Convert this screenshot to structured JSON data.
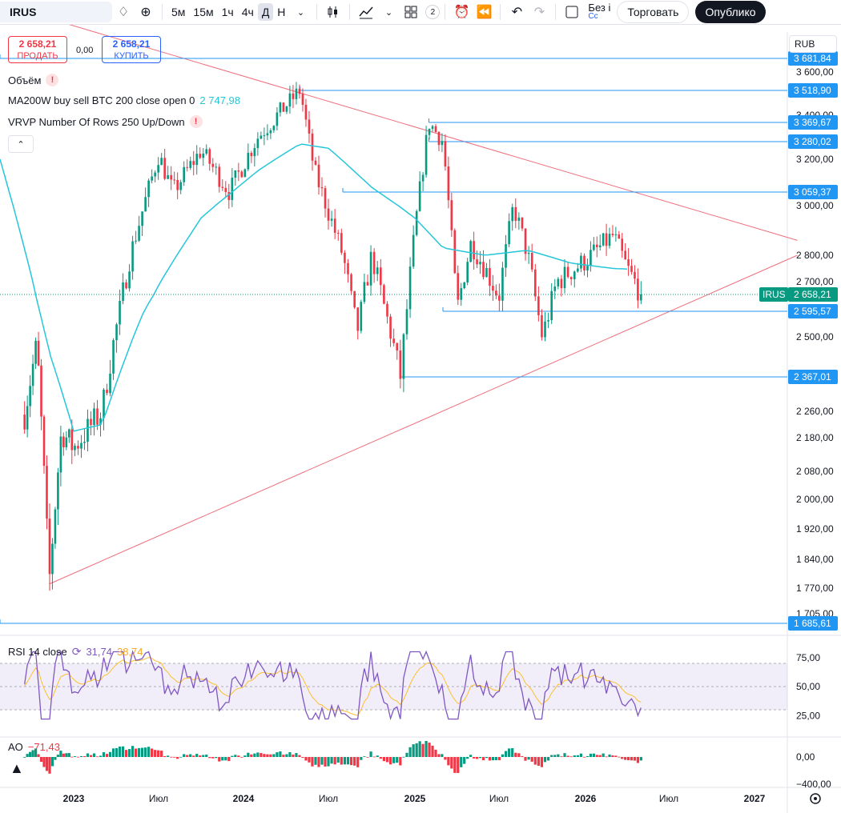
{
  "toolbar": {
    "symbol": "IRUS",
    "timeframes": [
      "5м",
      "15м",
      "1ч",
      "4ч",
      "Д",
      "Н"
    ],
    "active_timeframe": "Д",
    "layout_count": "2",
    "no_reg_top": "Без і",
    "no_reg_bottom": "Сс",
    "trade_label": "Торговать",
    "publish_label": "Опублико"
  },
  "order": {
    "sell_price": "2 658,21",
    "sell_label": "ПРОДАТЬ",
    "spread": "0,00",
    "buy_price": "2 658,21",
    "buy_label": "КУПИТЬ"
  },
  "legends": {
    "volume": "Объём",
    "ma_label": "MA200W buy sell BTC 200 close open 0",
    "ma_value": "2 747,98",
    "vrvp_label": "VRVP Number Of Rows 250 Up/Down"
  },
  "currency": "RUB",
  "chart_data": {
    "type": "candlestick",
    "symbol": "IRUS",
    "last_price": 2658.21,
    "price_axis_ticks": [
      "3 600,00",
      "3 400,00",
      "3 200,00",
      "3 000,00",
      "2 800,00",
      "2 700,00",
      "2 500,00",
      "2 260,00",
      "2 180,00",
      "2 080,00",
      "2 000,00",
      "1 920,00",
      "1 840,00",
      "1 770,00",
      "1 705,00"
    ],
    "time_axis_ticks": [
      "2023",
      "Июл",
      "2024",
      "Июл",
      "2025",
      "Июл",
      "2026",
      "Июл",
      "2027"
    ],
    "ohlc_path_approx": [
      {
        "t": "2022-09",
        "price": 2250
      },
      {
        "t": "2022-10",
        "price": 2480
      },
      {
        "t": "2022-11",
        "price": 1780
      },
      {
        "t": "2022-12",
        "price": 2200
      },
      {
        "t": "2023-01",
        "price": 2150
      },
      {
        "t": "2023-03",
        "price": 2260
      },
      {
        "t": "2023-05",
        "price": 2800
      },
      {
        "t": "2023-07",
        "price": 3220
      },
      {
        "t": "2023-08",
        "price": 3060
      },
      {
        "t": "2023-10",
        "price": 3240
      },
      {
        "t": "2023-12",
        "price": 3060
      },
      {
        "t": "2024-02",
        "price": 3300
      },
      {
        "t": "2024-05",
        "price": 3519
      },
      {
        "t": "2024-06",
        "price": 3150
      },
      {
        "t": "2024-08",
        "price": 2800
      },
      {
        "t": "2024-09",
        "price": 2520
      },
      {
        "t": "2024-10",
        "price": 2800
      },
      {
        "t": "2024-12",
        "price": 2367
      },
      {
        "t": "2025-01",
        "price": 2900
      },
      {
        "t": "2025-02",
        "price": 3370
      },
      {
        "t": "2025-03",
        "price": 3280
      },
      {
        "t": "2025-04",
        "price": 2600
      },
      {
        "t": "2025-05",
        "price": 2850
      },
      {
        "t": "2025-07",
        "price": 2650
      },
      {
        "t": "2025-08",
        "price": 3000
      },
      {
        "t": "2025-09",
        "price": 2800
      },
      {
        "t": "2025-10",
        "price": 2500
      },
      {
        "t": "2025-11",
        "price": 2700
      },
      {
        "t": "2026-01",
        "price": 2780
      },
      {
        "t": "2026-03",
        "price": 2880
      },
      {
        "t": "2026-04",
        "price": 2750
      },
      {
        "t": "2026-05",
        "price": 2658
      }
    ],
    "ma200w_path_approx": [
      {
        "t": "2022-07",
        "price": 3200
      },
      {
        "t": "2022-11",
        "price": 2450
      },
      {
        "t": "2023-01",
        "price": 2200
      },
      {
        "t": "2023-03",
        "price": 2220
      },
      {
        "t": "2023-06",
        "price": 2600
      },
      {
        "t": "2023-10",
        "price": 2950
      },
      {
        "t": "2024-02",
        "price": 3150
      },
      {
        "t": "2024-05",
        "price": 3270
      },
      {
        "t": "2024-07",
        "price": 3250
      },
      {
        "t": "2024-10",
        "price": 3080
      },
      {
        "t": "2025-01",
        "price": 2950
      },
      {
        "t": "2025-03",
        "price": 2830
      },
      {
        "t": "2025-06",
        "price": 2800
      },
      {
        "t": "2025-09",
        "price": 2820
      },
      {
        "t": "2025-12",
        "price": 2770
      },
      {
        "t": "2026-03",
        "price": 2750
      },
      {
        "t": "2026-04",
        "price": 2747.98
      }
    ],
    "horizontal_levels": [
      {
        "label": "3 681,84",
        "price": 3681.84,
        "start": "2022-06"
      },
      {
        "label": "3 518,90",
        "price": 3518.9,
        "start": "2024-05"
      },
      {
        "label": "3 369,67",
        "price": 3369.67,
        "start": "2025-02"
      },
      {
        "label": "3 280,02",
        "price": 3280.02,
        "start": "2025-02"
      },
      {
        "label": "3 059,37",
        "price": 3059.37,
        "start": "2024-08"
      },
      {
        "label": "2 595,57",
        "price": 2595.57,
        "start": "2025-03"
      },
      {
        "label": "2 367,01",
        "price": 2367.01,
        "start": "2024-12"
      },
      {
        "label": "1 685,61",
        "price": 1685.61,
        "start": "2022-06"
      }
    ],
    "trendlines": [
      {
        "from": {
          "t": "2022-11",
          "price": 1780
        },
        "to": {
          "t": "2027-04",
          "price": 2800
        }
      },
      {
        "from": {
          "t": "2022-12",
          "price": 3900
        },
        "to": {
          "t": "2027-04",
          "price": 2860
        }
      }
    ],
    "rsi": {
      "label": "RSI 14 close",
      "value": "31,74",
      "ma_value": "38,74",
      "ticks": [
        "75,00",
        "50,00",
        "25,00"
      ],
      "upper": 70,
      "lower": 30
    },
    "ao": {
      "label": "AO",
      "value": "−71,43",
      "ticks": [
        "0,00",
        "−400,00"
      ]
    },
    "colors": {
      "up": "#089981",
      "down": "#f23645",
      "ma": "#26c6da",
      "level": "#2196f3",
      "trend": "#ef6f7c",
      "rsi": "#7e57c2",
      "rsi_ma": "#fbc02d"
    }
  }
}
